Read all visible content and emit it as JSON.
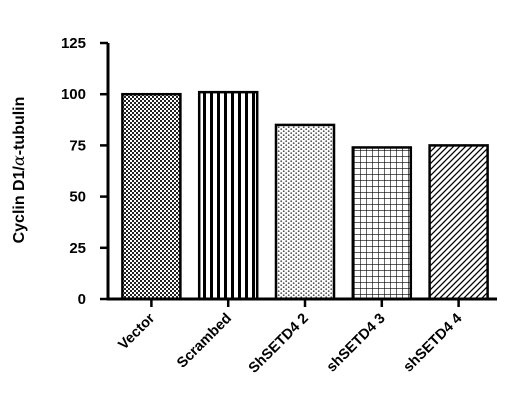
{
  "chart_data": {
    "type": "bar",
    "categories": [
      "Vector",
      "Scrambed",
      "ShSETD4 2",
      "shSETD4 3",
      "shSETD4 4"
    ],
    "values": [
      100,
      101,
      85,
      74,
      75
    ],
    "title": "",
    "xlabel": "",
    "ylabel_prefix": "Cyclin D1/",
    "ylabel_greek": "α",
    "ylabel_suffix": "-tubulin",
    "ylim": [
      0,
      125
    ],
    "yticks": [
      "0",
      "25",
      "50",
      "75",
      "100",
      "125"
    ],
    "ytick_values": [
      0,
      25,
      50,
      75,
      100,
      125
    ],
    "patterns": [
      "fine-checker",
      "vertical-lines",
      "fine-dots",
      "grid",
      "diagonal-hatch"
    ],
    "grid": false,
    "legend": "none"
  }
}
